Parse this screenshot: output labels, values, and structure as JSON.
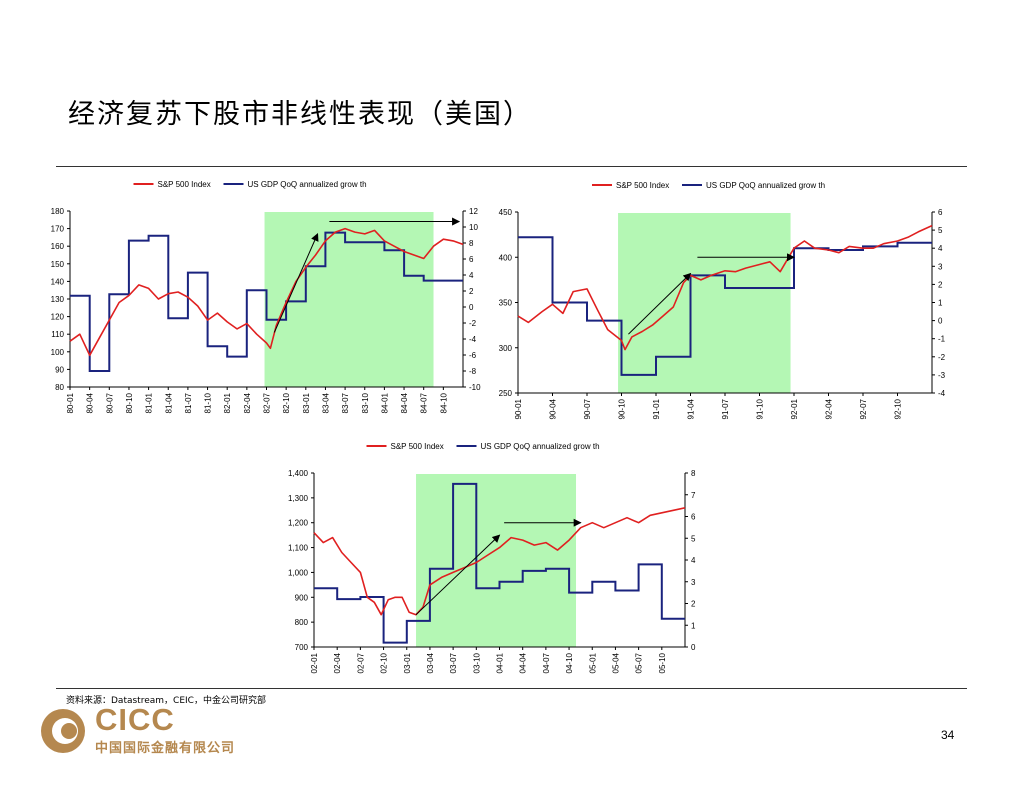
{
  "page": {
    "title": "经济复苏下股市非线性表现（美国）",
    "source": "资料来源：Datastream，CEIC，中金公司研究部",
    "logo_text": "CICC",
    "logo_cn": "中国国际金融有限公司",
    "page_number": "34"
  },
  "colors": {
    "sp500": "#e02020",
    "gdp": "#1a237e",
    "highlight": "#b4f7b4"
  },
  "chart_data": [
    {
      "type": "line",
      "legend": [
        "S&P 500 Index",
        "US GDP QoQ annualized grow th"
      ],
      "x_ticks": [
        "80-01",
        "80-04",
        "80-07",
        "80-10",
        "81-01",
        "81-04",
        "81-07",
        "81-10",
        "82-01",
        "82-04",
        "82-07",
        "82-10",
        "83-01",
        "83-04",
        "83-07",
        "83-10",
        "84-01",
        "84-04",
        "84-07",
        "84-10"
      ],
      "y_left": {
        "min": 80,
        "max": 180,
        "ticks": [
          "180",
          "170",
          "160",
          "150",
          "140",
          "130",
          "120",
          "110",
          "100",
          "90",
          "80"
        ]
      },
      "y_right": {
        "min": -10,
        "max": 12,
        "ticks": [
          "12",
          "10",
          "8",
          "6",
          "4",
          "2",
          "0",
          "-2",
          "-4",
          "-6",
          "-8",
          "-10"
        ]
      },
      "highlight": {
        "from": 9.9,
        "to": 18.5
      },
      "sp500": {
        "x": [
          0,
          0.5,
          1,
          1.5,
          2,
          2.5,
          3,
          3.5,
          4,
          4.5,
          5,
          5.5,
          6,
          6.5,
          7,
          7.5,
          8,
          8.5,
          9,
          9.5,
          10,
          10.2,
          10.5,
          11,
          11.5,
          12,
          12.5,
          13,
          13.5,
          14,
          14.5,
          15,
          15.5,
          16,
          16.5,
          17,
          17.5,
          18,
          18.5,
          19,
          19.5,
          20
        ],
        "y": [
          106,
          110,
          98,
          108,
          118,
          128,
          132,
          138,
          136,
          130,
          133,
          134,
          131,
          126,
          118,
          122,
          117,
          113,
          116,
          110,
          105,
          102,
          115,
          128,
          140,
          148,
          155,
          163,
          168,
          170,
          168,
          167,
          169,
          163,
          160,
          157,
          155,
          153,
          160,
          164,
          163,
          161
        ]
      },
      "gdp": {
        "x": [
          0,
          1,
          1,
          2,
          2,
          3,
          3,
          4,
          4,
          5,
          5,
          6,
          6,
          7,
          7,
          8,
          8,
          9,
          9,
          10,
          10,
          11,
          11,
          12,
          12,
          13,
          13,
          14,
          14,
          15,
          15,
          16,
          16,
          17,
          17,
          18,
          18,
          19,
          19,
          20
        ],
        "y": [
          1.4,
          1.4,
          -8,
          -8,
          1.6,
          1.6,
          8.3,
          8.3,
          8.9,
          8.9,
          -1.4,
          -1.4,
          4.3,
          4.3,
          -4.9,
          -4.9,
          -6.2,
          -6.2,
          2.1,
          2.1,
          -1.6,
          -1.6,
          0.7,
          0.7,
          5.1,
          5.1,
          9.3,
          9.3,
          8.1,
          8.1,
          8.1,
          8.1,
          7.1,
          7.1,
          3.9,
          3.9,
          3.3,
          3.3,
          3.3,
          3.3
        ]
      },
      "arrows": [
        {
          "x1": 10.4,
          "y1": 111,
          "x2": 12.6,
          "y2": 167
        },
        {
          "x1": 13.2,
          "y1": 174,
          "x2": 19.8,
          "y2": 174
        }
      ]
    },
    {
      "type": "line",
      "legend": [
        "S&P 500 Index",
        "US GDP QoQ annualized grow th"
      ],
      "x_ticks": [
        "90-01",
        "90-04",
        "90-07",
        "90-10",
        "91-01",
        "91-04",
        "91-07",
        "91-10",
        "92-01",
        "92-04",
        "92-07",
        "92-10"
      ],
      "y_left": {
        "min": 250,
        "max": 450,
        "ticks": [
          "450",
          "400",
          "350",
          "300",
          "250"
        ]
      },
      "y_right": {
        "min": -4,
        "max": 6,
        "ticks": [
          "6",
          "5",
          "4",
          "3",
          "2",
          "1",
          "0",
          "-1",
          "-2",
          "-3",
          "-4"
        ]
      },
      "highlight": {
        "from": 2.9,
        "to": 7.9
      },
      "sp500": {
        "x": [
          0,
          0.3,
          0.7,
          1,
          1.3,
          1.6,
          2,
          2.3,
          2.6,
          3,
          3.1,
          3.3,
          3.6,
          3.9,
          4.2,
          4.5,
          4.8,
          5,
          5.3,
          5.6,
          6,
          6.3,
          6.6,
          7,
          7.3,
          7.6,
          8,
          8.3,
          8.6,
          9,
          9.3,
          9.6,
          10,
          10.3,
          10.6,
          11,
          11.3,
          11.6,
          12
        ],
        "y": [
          335,
          328,
          340,
          348,
          338,
          362,
          365,
          342,
          320,
          308,
          298,
          312,
          318,
          325,
          335,
          345,
          372,
          380,
          375,
          380,
          385,
          384,
          388,
          392,
          395,
          384,
          410,
          418,
          410,
          408,
          405,
          412,
          410,
          410,
          415,
          418,
          422,
          428,
          435
        ]
      },
      "gdp": {
        "x": [
          0,
          1,
          1,
          2,
          2,
          3,
          3,
          4,
          4,
          5,
          5,
          6,
          6,
          7,
          7,
          8,
          8,
          9,
          9,
          10,
          10,
          11,
          11,
          12
        ],
        "y": [
          4.6,
          4.6,
          1.0,
          1.0,
          0,
          0,
          -3.0,
          -3.0,
          -2.0,
          -2.0,
          2.5,
          2.5,
          1.8,
          1.8,
          1.8,
          1.8,
          4.0,
          4.0,
          3.9,
          3.9,
          4.1,
          4.1,
          4.3,
          4.3
        ]
      },
      "arrows": [
        {
          "x1": 3.2,
          "y1": 315,
          "x2": 5.0,
          "y2": 382
        },
        {
          "x1": 5.2,
          "y1": 400,
          "x2": 8.0,
          "y2": 400
        }
      ]
    },
    {
      "type": "line",
      "legend": [
        "S&P 500 Index",
        "US GDP QoQ annualized grow th"
      ],
      "x_ticks": [
        "02-01",
        "02-04",
        "02-07",
        "02-10",
        "03-01",
        "03-04",
        "03-07",
        "03-10",
        "04-01",
        "04-04",
        "04-07",
        "04-10",
        "05-01",
        "05-04",
        "05-07",
        "05-10"
      ],
      "y_left": {
        "min": 700,
        "max": 1400,
        "ticks": [
          "1,400",
          "1,300",
          "1,200",
          "1,100",
          "1,000",
          "900",
          "800",
          "700"
        ]
      },
      "y_right": {
        "min": 0,
        "max": 8,
        "ticks": [
          "8",
          "7",
          "6",
          "5",
          "4",
          "3",
          "2",
          "1",
          "0"
        ]
      },
      "highlight": {
        "from": 4.4,
        "to": 11.3
      },
      "sp500": {
        "x": [
          0,
          0.4,
          0.8,
          1.2,
          1.6,
          2,
          2.3,
          2.6,
          2.9,
          3.2,
          3.5,
          3.8,
          4.1,
          4.4,
          4.7,
          5,
          5.5,
          6,
          6.5,
          7,
          7.5,
          8,
          8.5,
          9,
          9.5,
          10,
          10.5,
          11,
          11.5,
          12,
          12.5,
          13,
          13.5,
          14,
          14.5,
          15,
          15.5,
          16
        ],
        "y": [
          1160,
          1120,
          1140,
          1080,
          1040,
          1000,
          900,
          880,
          830,
          890,
          900,
          900,
          840,
          830,
          860,
          950,
          980,
          1000,
          1020,
          1040,
          1070,
          1100,
          1140,
          1130,
          1110,
          1120,
          1090,
          1130,
          1180,
          1200,
          1180,
          1200,
          1220,
          1200,
          1230,
          1240,
          1250,
          1260
        ]
      },
      "gdp": {
        "x": [
          0,
          1,
          1,
          2,
          2,
          3,
          3,
          4,
          4,
          5,
          5,
          6,
          6,
          7,
          7,
          8,
          8,
          9,
          9,
          10,
          10,
          11,
          11,
          12,
          12,
          13,
          13,
          14,
          14,
          15,
          15,
          16
        ],
        "y": [
          2.7,
          2.7,
          2.2,
          2.2,
          2.3,
          2.3,
          0.2,
          0.2,
          1.2,
          1.2,
          3.6,
          3.6,
          7.5,
          7.5,
          2.7,
          2.7,
          3.0,
          3.0,
          3.5,
          3.5,
          3.6,
          3.6,
          2.5,
          2.5,
          3.0,
          3.0,
          2.6,
          2.6,
          3.8,
          3.8,
          1.3,
          1.3
        ]
      },
      "arrows": [
        {
          "x1": 4.4,
          "y1": 830,
          "x2": 8.0,
          "y2": 1150
        },
        {
          "x1": 8.2,
          "y1": 1200,
          "x2": 11.5,
          "y2": 1200
        }
      ]
    }
  ]
}
